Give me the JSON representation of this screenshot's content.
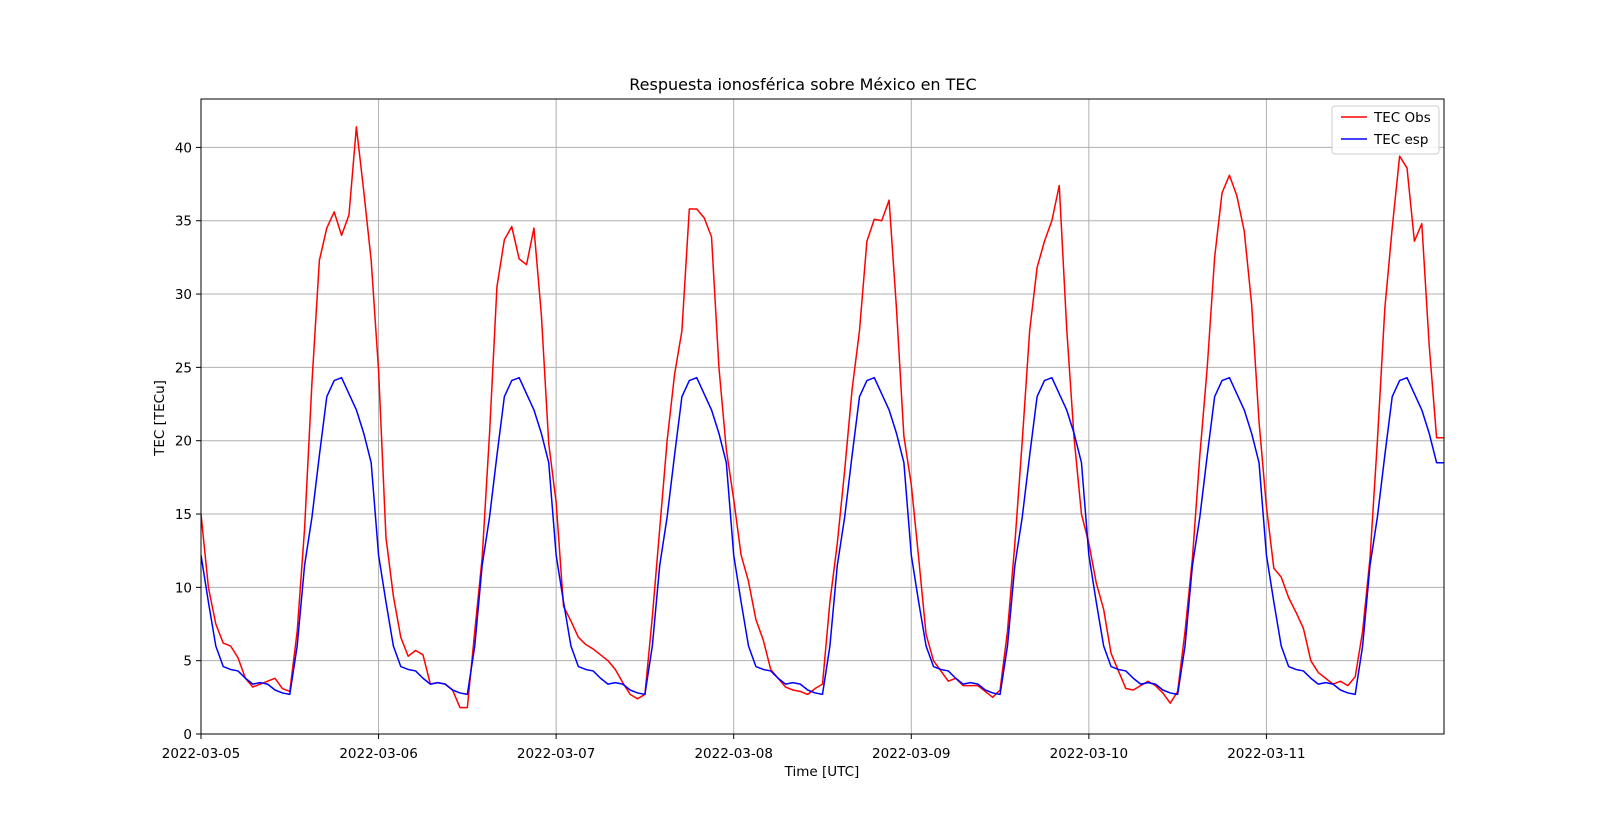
{
  "chart_data": {
    "type": "line",
    "title": "Respuesta ionosférica sobre México en TEC",
    "xlabel": "Time [UTC]",
    "ylabel": "TEC [TECu]",
    "xlim": [
      "2022-03-05T00:00",
      "2022-03-12T00:00"
    ],
    "ylim": [
      0,
      43.3
    ],
    "grid": true,
    "legend_position": "top-right",
    "x_ticks": [
      "2022-03-05",
      "2022-03-06",
      "2022-03-07",
      "2022-03-08",
      "2022-03-09",
      "2022-03-10",
      "2022-03-11"
    ],
    "y_ticks": [
      0,
      5,
      10,
      15,
      20,
      25,
      30,
      35,
      40
    ],
    "x": [
      "2022-03-05T00:00",
      "2022-03-05T01:00",
      "2022-03-05T02:00",
      "2022-03-05T03:00",
      "2022-03-05T04:00",
      "2022-03-05T05:00",
      "2022-03-05T06:00",
      "2022-03-05T07:00",
      "2022-03-05T08:00",
      "2022-03-05T09:00",
      "2022-03-05T10:00",
      "2022-03-05T11:00",
      "2022-03-05T12:00",
      "2022-03-05T13:00",
      "2022-03-05T14:00",
      "2022-03-05T15:00",
      "2022-03-05T16:00",
      "2022-03-05T17:00",
      "2022-03-05T18:00",
      "2022-03-05T19:00",
      "2022-03-05T20:00",
      "2022-03-05T21:00",
      "2022-03-05T22:00",
      "2022-03-05T23:00",
      "2022-03-06T00:00",
      "2022-03-06T01:00",
      "2022-03-06T02:00",
      "2022-03-06T03:00",
      "2022-03-06T04:00",
      "2022-03-06T05:00",
      "2022-03-06T06:00",
      "2022-03-06T07:00",
      "2022-03-06T08:00",
      "2022-03-06T09:00",
      "2022-03-06T10:00",
      "2022-03-06T11:00",
      "2022-03-06T12:00",
      "2022-03-06T13:00",
      "2022-03-06T14:00",
      "2022-03-06T15:00",
      "2022-03-06T16:00",
      "2022-03-06T17:00",
      "2022-03-06T18:00",
      "2022-03-06T19:00",
      "2022-03-06T20:00",
      "2022-03-06T21:00",
      "2022-03-06T22:00",
      "2022-03-06T23:00",
      "2022-03-07T00:00",
      "2022-03-07T01:00",
      "2022-03-07T02:00",
      "2022-03-07T03:00",
      "2022-03-07T04:00",
      "2022-03-07T05:00",
      "2022-03-07T06:00",
      "2022-03-07T07:00",
      "2022-03-07T08:00",
      "2022-03-07T09:00",
      "2022-03-07T10:00",
      "2022-03-07T11:00",
      "2022-03-07T12:00",
      "2022-03-07T13:00",
      "2022-03-07T14:00",
      "2022-03-07T15:00",
      "2022-03-07T16:00",
      "2022-03-07T17:00",
      "2022-03-07T18:00",
      "2022-03-07T19:00",
      "2022-03-07T20:00",
      "2022-03-07T21:00",
      "2022-03-07T22:00",
      "2022-03-07T23:00",
      "2022-03-08T00:00",
      "2022-03-08T01:00",
      "2022-03-08T02:00",
      "2022-03-08T03:00",
      "2022-03-08T04:00",
      "2022-03-08T05:00",
      "2022-03-08T06:00",
      "2022-03-08T07:00",
      "2022-03-08T08:00",
      "2022-03-08T09:00",
      "2022-03-08T10:00",
      "2022-03-08T11:00",
      "2022-03-08T12:00",
      "2022-03-08T13:00",
      "2022-03-08T14:00",
      "2022-03-08T15:00",
      "2022-03-08T16:00",
      "2022-03-08T17:00",
      "2022-03-08T18:00",
      "2022-03-08T19:00",
      "2022-03-08T20:00",
      "2022-03-08T21:00",
      "2022-03-08T22:00",
      "2022-03-08T23:00",
      "2022-03-09T00:00",
      "2022-03-09T01:00",
      "2022-03-09T02:00",
      "2022-03-09T03:00",
      "2022-03-09T04:00",
      "2022-03-09T05:00",
      "2022-03-09T06:00",
      "2022-03-09T07:00",
      "2022-03-09T08:00",
      "2022-03-09T09:00",
      "2022-03-09T10:00",
      "2022-03-09T11:00",
      "2022-03-09T12:00",
      "2022-03-09T13:00",
      "2022-03-09T14:00",
      "2022-03-09T15:00",
      "2022-03-09T16:00",
      "2022-03-09T17:00",
      "2022-03-09T18:00",
      "2022-03-09T19:00",
      "2022-03-09T20:00",
      "2022-03-09T21:00",
      "2022-03-09T22:00",
      "2022-03-09T23:00",
      "2022-03-10T00:00",
      "2022-03-10T01:00",
      "2022-03-10T02:00",
      "2022-03-10T03:00",
      "2022-03-10T04:00",
      "2022-03-10T05:00",
      "2022-03-10T06:00",
      "2022-03-10T07:00",
      "2022-03-10T08:00",
      "2022-03-10T09:00",
      "2022-03-10T10:00",
      "2022-03-10T11:00",
      "2022-03-10T12:00",
      "2022-03-10T13:00",
      "2022-03-10T14:00",
      "2022-03-10T15:00",
      "2022-03-10T16:00",
      "2022-03-10T17:00",
      "2022-03-10T18:00",
      "2022-03-10T19:00",
      "2022-03-10T20:00",
      "2022-03-10T21:00",
      "2022-03-10T22:00",
      "2022-03-10T23:00",
      "2022-03-11T00:00",
      "2022-03-11T01:00",
      "2022-03-11T02:00",
      "2022-03-11T03:00",
      "2022-03-11T04:00",
      "2022-03-11T05:00",
      "2022-03-11T06:00",
      "2022-03-11T07:00",
      "2022-03-11T08:00",
      "2022-03-11T09:00",
      "2022-03-11T10:00",
      "2022-03-11T11:00",
      "2022-03-11T12:00",
      "2022-03-11T13:00",
      "2022-03-11T14:00",
      "2022-03-11T15:00",
      "2022-03-11T16:00",
      "2022-03-11T17:00",
      "2022-03-11T18:00",
      "2022-03-11T19:00",
      "2022-03-11T20:00",
      "2022-03-11T21:00",
      "2022-03-11T22:00",
      "2022-03-11T23:00",
      "2022-03-12T00:00"
    ],
    "series": [
      {
        "name": "TEC Obs",
        "color": "#ff0000",
        "values": [
          15.0,
          10.0,
          7.5,
          6.2,
          6.0,
          5.2,
          3.8,
          3.2,
          3.4,
          3.6,
          3.8,
          3.1,
          2.9,
          7.0,
          14.0,
          24.0,
          32.3,
          34.5,
          35.6,
          34.0,
          35.4,
          41.4,
          37.0,
          32.3,
          24.8,
          13.4,
          9.4,
          6.6,
          5.3,
          5.7,
          5.4,
          3.4,
          3.5,
          3.4,
          3.0,
          1.8,
          1.8,
          7.0,
          12.0,
          20.5,
          30.5,
          33.7,
          34.6,
          32.4,
          32.0,
          34.5,
          28.6,
          19.8,
          15.8,
          8.7,
          7.7,
          6.6,
          6.1,
          5.8,
          5.4,
          5.0,
          4.4,
          3.5,
          2.7,
          2.4,
          2.7,
          8.0,
          14.0,
          20.0,
          24.5,
          27.5,
          35.8,
          35.8,
          35.2,
          33.9,
          25.0,
          19.4,
          16.0,
          12.2,
          10.4,
          7.8,
          6.4,
          4.4,
          3.8,
          3.2,
          3.0,
          2.9,
          2.7,
          3.1,
          3.4,
          9.0,
          13.0,
          18.0,
          23.5,
          27.5,
          33.6,
          35.1,
          35.0,
          36.4,
          29.0,
          20.3,
          17.0,
          12.0,
          6.8,
          5.0,
          4.3,
          3.6,
          3.8,
          3.3,
          3.3,
          3.3,
          2.9,
          2.5,
          3.0,
          7.0,
          13.0,
          20.0,
          27.5,
          31.8,
          33.6,
          35.0,
          37.4,
          27.7,
          20.2,
          15.0,
          13.0,
          10.3,
          8.5,
          5.5,
          4.3,
          3.1,
          3.0,
          3.3,
          3.6,
          3.3,
          2.8,
          2.1,
          2.9,
          7.0,
          12.0,
          19.0,
          25.0,
          32.5,
          36.9,
          38.1,
          36.7,
          34.3,
          29.3,
          21.3,
          15.5,
          11.3,
          10.7,
          9.3,
          8.3,
          7.2,
          5.0,
          4.2,
          3.8,
          3.4,
          3.6,
          3.3,
          3.9,
          7.0,
          12.0,
          20.0,
          29.0,
          34.5,
          39.4,
          38.6,
          33.6,
          34.8,
          26.5,
          20.2,
          20.2
        ]
      },
      {
        "name": "TEC esp",
        "color": "#0000ff",
        "values": [
          12.2,
          9.0,
          6.0,
          4.6,
          4.4,
          4.3,
          3.8,
          3.4,
          3.5,
          3.4,
          3.0,
          2.8,
          2.7,
          6.0,
          11.5,
          14.8,
          19.0,
          23.0,
          24.1,
          24.3,
          23.2,
          22.1,
          20.5,
          18.5,
          12.2,
          9.0,
          6.0,
          4.6,
          4.4,
          4.3,
          3.8,
          3.4,
          3.5,
          3.4,
          3.0,
          2.8,
          2.7,
          6.0,
          11.5,
          14.8,
          19.0,
          23.0,
          24.1,
          24.3,
          23.2,
          22.1,
          20.5,
          18.5,
          12.2,
          9.0,
          6.0,
          4.6,
          4.4,
          4.3,
          3.8,
          3.4,
          3.5,
          3.4,
          3.0,
          2.8,
          2.7,
          6.0,
          11.5,
          14.8,
          19.0,
          23.0,
          24.1,
          24.3,
          23.2,
          22.1,
          20.5,
          18.5,
          12.2,
          9.0,
          6.0,
          4.6,
          4.4,
          4.3,
          3.8,
          3.4,
          3.5,
          3.4,
          3.0,
          2.8,
          2.7,
          6.0,
          11.5,
          14.8,
          19.0,
          23.0,
          24.1,
          24.3,
          23.2,
          22.1,
          20.5,
          18.5,
          12.2,
          9.0,
          6.0,
          4.6,
          4.4,
          4.3,
          3.8,
          3.4,
          3.5,
          3.4,
          3.0,
          2.8,
          2.7,
          6.0,
          11.5,
          14.8,
          19.0,
          23.0,
          24.1,
          24.3,
          23.2,
          22.1,
          20.5,
          18.5,
          12.2,
          9.0,
          6.0,
          4.6,
          4.4,
          4.3,
          3.8,
          3.4,
          3.5,
          3.4,
          3.0,
          2.8,
          2.7,
          6.0,
          11.5,
          14.8,
          19.0,
          23.0,
          24.1,
          24.3,
          23.2,
          22.1,
          20.5,
          18.5,
          12.2,
          9.0,
          6.0,
          4.6,
          4.4,
          4.3,
          3.8,
          3.4,
          3.5,
          3.4,
          3.0,
          2.8,
          2.7,
          6.0,
          11.5,
          14.8,
          19.0,
          23.0,
          24.1,
          24.3,
          23.2,
          22.1,
          20.5,
          18.5,
          18.5
        ]
      }
    ]
  }
}
